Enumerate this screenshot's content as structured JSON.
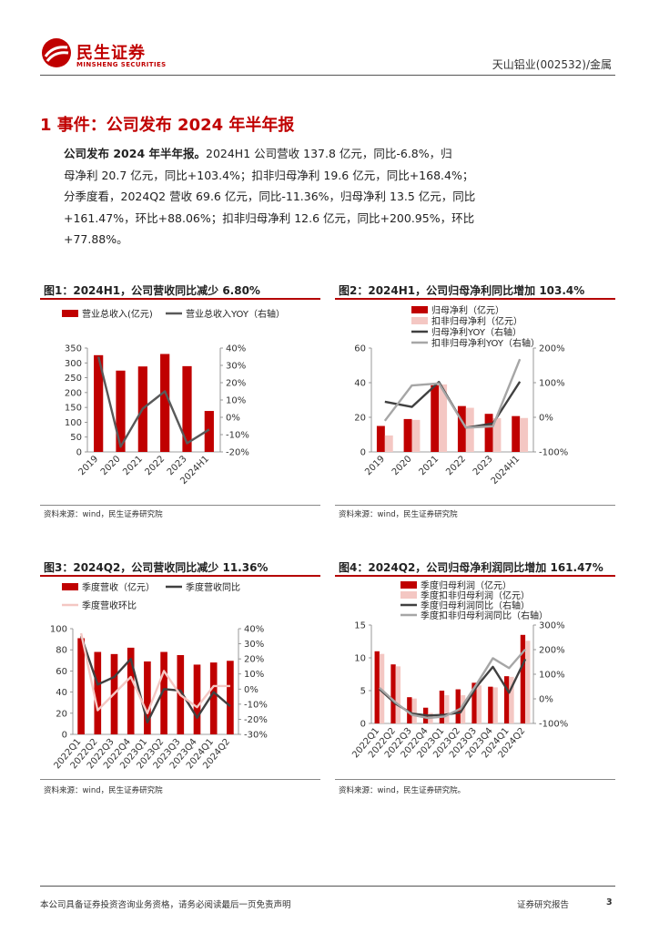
{
  "header": {
    "logo_cn": "民生证券",
    "logo_en": "MINSHENG SECURITIES",
    "right_text": "天山铝业(002532)/金属"
  },
  "section": {
    "title": "1 事件：公司发布 2024 年半年报",
    "para_lead": "公司发布 2024 年半年报。",
    "para_line1": "2024H1 公司营收 137.8 亿元，同比-6.8%，归",
    "para_line2": "母净利 20.7 亿元，同比+103.4%；扣非归母净利 19.6 亿元，同比+168.4%；",
    "para_line3": "分季度看，2024Q2 营收 69.6 亿元，同比-11.36%，归母净利 13.5 亿元，同比",
    "para_line4": "+161.47%，环比+88.06%；扣非归母净利 12.6 亿元，同比+200.95%，环比",
    "para_line5": "+77.88%。"
  },
  "figures": {
    "fig1": {
      "title": "图1：2024H1，公司营收同比减少 6.80%",
      "source": "资料来源：wind，民生证券研究院"
    },
    "fig2": {
      "title": "图2：2024H1，公司归母净利同比增加 103.4%",
      "source": "资料来源：wind，民生证券研究院"
    },
    "fig3": {
      "title": "图3：2024Q2，公司营收同比减少 11.36%",
      "source": "资料来源：wind，民生证券研究院"
    },
    "fig4": {
      "title": "图4：2024Q2，公司归母净利润同比增加 161.47%",
      "source": "资料来源：wind，民生证券研究院。"
    }
  },
  "chart_data": [
    {
      "id": "fig1",
      "type": "bar+line",
      "categories": [
        "2019",
        "2020",
        "2021",
        "2022",
        "2023",
        "2024H1"
      ],
      "bars": [
        {
          "name": "营业总收入(亿元)",
          "values": [
            326,
            274,
            288,
            330,
            289,
            138
          ],
          "color": "#c00000"
        }
      ],
      "lines": [
        {
          "name": "营业总收入YOY（右轴）",
          "values": [
            35,
            -17,
            5,
            15,
            -15,
            -7
          ],
          "color": "#595959"
        }
      ],
      "ylim": [
        0,
        350
      ],
      "yticks": [
        0,
        50,
        100,
        150,
        200,
        250,
        300,
        350
      ],
      "yticklabels": [
        "0",
        "50",
        "100",
        "150",
        "200",
        "250",
        "300",
        "350"
      ],
      "y2lim": [
        -20,
        40
      ],
      "y2ticks": [
        -20,
        -10,
        0,
        10,
        20,
        30,
        40
      ],
      "y2ticklabels": [
        "-20%",
        "-10%",
        "0%",
        "10%",
        "20%",
        "30%",
        "40%"
      ]
    },
    {
      "id": "fig2",
      "type": "bar+line",
      "categories": [
        "2019",
        "2020",
        "2021",
        "2022",
        "2023",
        "2024H1"
      ],
      "bars": [
        {
          "name": "归母净利（亿元）",
          "values": [
            15,
            19,
            38.5,
            26.5,
            22,
            20.7
          ],
          "color": "#c00000"
        },
        {
          "name": "扣非归母净利（亿元）",
          "values": [
            9.5,
            18.5,
            39,
            25.5,
            19.5,
            19.6
          ],
          "color": "#f4c7c3"
        }
      ],
      "lines": [
        {
          "name": "归母净利YOY（右轴）",
          "values": [
            45,
            30,
            102,
            -30,
            -18,
            103
          ],
          "color": "#404040"
        },
        {
          "name": "扣非归母净利YOY（右轴）",
          "values": [
            -10,
            92,
            98,
            -30,
            -26,
            168
          ],
          "color": "#a6a6a6"
        }
      ],
      "ylim": [
        0,
        60
      ],
      "yticks": [
        0,
        20,
        40,
        60
      ],
      "yticklabels": [
        "0",
        "20",
        "40",
        "60"
      ],
      "y2lim": [
        -100,
        200
      ],
      "y2ticks": [
        -100,
        0,
        100,
        200
      ],
      "y2ticklabels": [
        "-100%",
        "0%",
        "100%",
        "200%"
      ]
    },
    {
      "id": "fig3",
      "type": "bar+line",
      "categories": [
        "2022Q1",
        "2022Q2",
        "2022Q3",
        "2022Q4",
        "2023Q1",
        "2023Q2",
        "2023Q3",
        "2023Q4",
        "2024Q1",
        "2024Q2"
      ],
      "bars": [
        {
          "name": "季度营收（亿元）",
          "values": [
            91,
            78,
            76,
            82,
            69,
            78,
            75,
            66,
            68,
            69.6
          ],
          "color": "#c00000"
        }
      ],
      "lines": [
        {
          "name": "季度营收同比",
          "values": [
            35,
            3,
            8,
            20,
            -22,
            0,
            -1,
            -19,
            -2,
            -11.36
          ],
          "color": "#404040"
        },
        {
          "name": "季度营收环比",
          "values": [
            37,
            -14,
            -3,
            8,
            -16,
            12,
            -4,
            -12,
            2,
            2
          ],
          "color": "#f4c7c3"
        }
      ],
      "ylim": [
        0,
        100
      ],
      "yticks": [
        0,
        20,
        40,
        60,
        80,
        100
      ],
      "yticklabels": [
        "0",
        "20",
        "40",
        "60",
        "80",
        "100"
      ],
      "y2lim": [
        -30,
        40
      ],
      "y2ticks": [
        -30,
        -20,
        -10,
        0,
        10,
        20,
        30,
        40
      ],
      "y2ticklabels": [
        "-30%",
        "-20%",
        "-10%",
        "0%",
        "10%",
        "20%",
        "30%",
        "40%"
      ]
    },
    {
      "id": "fig4",
      "type": "bar+line",
      "categories": [
        "2022Q1",
        "2022Q2",
        "2022Q3",
        "2022Q4",
        "2023Q1",
        "2023Q2",
        "2023Q3",
        "2023Q4",
        "2024Q1",
        "2024Q2"
      ],
      "bars": [
        {
          "name": "季度归母利润（亿元）",
          "values": [
            11,
            9,
            4,
            2.4,
            5,
            5.2,
            6.2,
            5.6,
            7.2,
            13.5
          ],
          "color": "#c00000"
        },
        {
          "name": "季度扣非归母利润（亿元）",
          "values": [
            10.6,
            8.7,
            3.8,
            1.6,
            4.3,
            4.3,
            5.8,
            5.5,
            7.1,
            12.6
          ],
          "color": "#f4c7c3"
        }
      ],
      "lines": [
        {
          "name": "季度归母利润同比（右轴）",
          "values": [
            40,
            -20,
            -60,
            -68,
            -65,
            -55,
            50,
            130,
            25,
            161.47
          ],
          "color": "#404040"
        },
        {
          "name": "季度扣非归母利润同比（右轴）",
          "values": [
            45,
            -15,
            -65,
            -78,
            -72,
            -40,
            60,
            165,
            125,
            200.95
          ],
          "color": "#a6a6a6"
        }
      ],
      "ylim": [
        0,
        15
      ],
      "yticks": [
        0,
        5,
        10,
        15
      ],
      "yticklabels": [
        "0",
        "5",
        "10",
        "15"
      ],
      "y2lim": [
        -100,
        300
      ],
      "y2ticks": [
        -100,
        0,
        100,
        200,
        300
      ],
      "y2ticklabels": [
        "-100%",
        "0%",
        "100%",
        "200%",
        "300%"
      ]
    }
  ],
  "footer": {
    "disclaimer": "本公司具备证券投资咨询业务资格，请务必阅读最后一页免责声明",
    "report_type": "证券研究报告",
    "page_number": "3"
  }
}
